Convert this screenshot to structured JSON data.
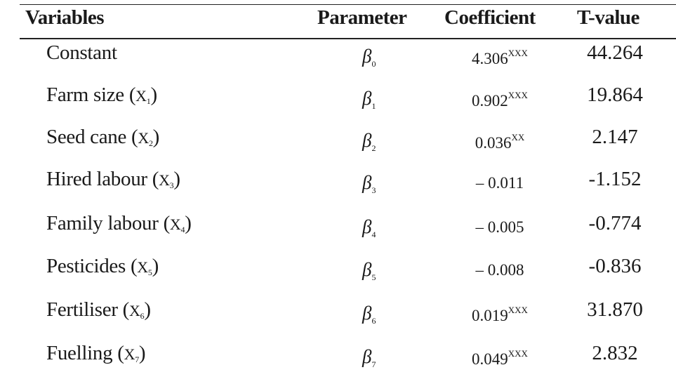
{
  "headers": {
    "variables": "Variables",
    "parameter": "Parameter",
    "coefficient": "Coefficient",
    "tvalue": "T-value"
  },
  "rows": [
    {
      "variable": "Constant",
      "x": "",
      "xsub": "",
      "param": "β",
      "param_sub": "0",
      "coef": "4.306",
      "sig": "XXX",
      "tval": "44.264"
    },
    {
      "variable": "Farm size ",
      "x": "X",
      "xsub": "1",
      "param": "β",
      "param_sub": "1",
      "coef": "0.902",
      "sig": "XXX",
      "tval": "19.864"
    },
    {
      "variable": "Seed cane ",
      "x": "X",
      "xsub": "2",
      "param": "β",
      "param_sub": "2",
      "coef": "0.036",
      "sig": "XX",
      "tval": "2.147"
    },
    {
      "variable": "Hired labour ",
      "x": "X",
      "xsub": "3",
      "param": "β",
      "param_sub": "3",
      "coef": "– 0.011",
      "sig": "",
      "tval": "-1.152"
    },
    {
      "variable": "Family labour ",
      "x": "X",
      "xsub": "4",
      "param": "β",
      "param_sub": "4",
      "coef": "– 0.005",
      "sig": "",
      "tval": "-0.774"
    },
    {
      "variable": "Pesticides ",
      "x": "X",
      "xsub": "5",
      "param": "β",
      "param_sub": "5",
      "coef": "– 0.008",
      "sig": "",
      "tval": "-0.836"
    },
    {
      "variable": "Fertiliser ",
      "x": "X",
      "xsub": "6",
      "param": "β",
      "param_sub": "6",
      "coef": "0.019",
      "sig": "XXX",
      "tval": "31.870"
    },
    {
      "variable": "Fuelling ",
      "x": "X",
      "xsub": "7",
      "param": "β",
      "param_sub": "7",
      "coef": "0.049",
      "sig": "XXX",
      "tval": "2.832"
    }
  ]
}
